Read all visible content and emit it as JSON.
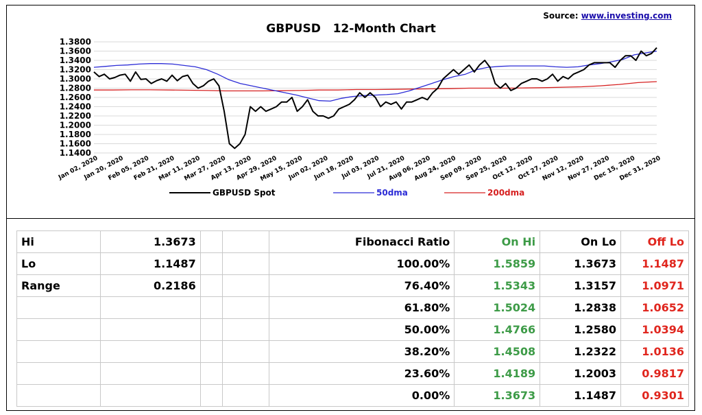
{
  "source": {
    "label": "Source: ",
    "link": "www.investing.com"
  },
  "colors": {
    "spot": "#000000",
    "ma50": "#2b2bd6",
    "ma200": "#d62020",
    "on_hi": "#3d9b47",
    "off_lo": "#e0261e"
  },
  "chart_data": {
    "type": "line",
    "title": "GBPUSD   12-Month Chart",
    "ylim": [
      1.14,
      1.38
    ],
    "y_ticks": [
      "1.1400",
      "1.1600",
      "1.1800",
      "1.2000",
      "1.2200",
      "1.2400",
      "1.2600",
      "1.2800",
      "1.3000",
      "1.3200",
      "1.3400",
      "1.3600",
      "1.3800"
    ],
    "x_ticks": [
      "Jan 02, 2020",
      "Jan 20, 2020",
      "Feb 05, 2020",
      "Feb 21, 2020",
      "Mar 11, 2020",
      "Mar 27, 2020",
      "Apr 13, 2020",
      "Apr 29, 2020",
      "May 15, 2020",
      "Jun 02, 2020",
      "Jun 18, 2020",
      "Jul 03, 2020",
      "Jul 21, 2020",
      "Aug 06, 2020",
      "Aug 24, 2020",
      "Sep 09, 2020",
      "Sep 25, 2020",
      "Oct 12, 2020",
      "Oct 27, 2020",
      "Nov 12, 2020",
      "Nov 27, 2020",
      "Dec 15, 2020",
      "Dec 31, 2020"
    ],
    "grid": true,
    "legend_position": "bottom",
    "series": [
      {
        "name": "GBPUSD Spot",
        "color": "#000000",
        "values": [
          1.315,
          1.305,
          1.31,
          1.3,
          1.303,
          1.308,
          1.31,
          1.295,
          1.315,
          1.299,
          1.3,
          1.29,
          1.296,
          1.3,
          1.295,
          1.308,
          1.296,
          1.305,
          1.308,
          1.29,
          1.28,
          1.285,
          1.295,
          1.3,
          1.285,
          1.23,
          1.16,
          1.15,
          1.16,
          1.18,
          1.24,
          1.23,
          1.24,
          1.23,
          1.235,
          1.24,
          1.25,
          1.25,
          1.26,
          1.23,
          1.24,
          1.255,
          1.23,
          1.22,
          1.22,
          1.215,
          1.22,
          1.235,
          1.24,
          1.245,
          1.255,
          1.27,
          1.26,
          1.27,
          1.26,
          1.24,
          1.25,
          1.245,
          1.25,
          1.235,
          1.25,
          1.25,
          1.255,
          1.26,
          1.255,
          1.27,
          1.28,
          1.3,
          1.31,
          1.32,
          1.31,
          1.32,
          1.33,
          1.315,
          1.33,
          1.34,
          1.325,
          1.29,
          1.28,
          1.29,
          1.275,
          1.28,
          1.29,
          1.295,
          1.3,
          1.3,
          1.295,
          1.3,
          1.31,
          1.295,
          1.305,
          1.3,
          1.31,
          1.315,
          1.32,
          1.33,
          1.335,
          1.335,
          1.335,
          1.335,
          1.325,
          1.34,
          1.35,
          1.35,
          1.34,
          1.36,
          1.35,
          1.355,
          1.3673
        ]
      },
      {
        "name": "50dma",
        "color": "#2b2bd6",
        "values": [
          1.325,
          1.327,
          1.329,
          1.33,
          1.332,
          1.333,
          1.333,
          1.332,
          1.329,
          1.326,
          1.32,
          1.31,
          1.298,
          1.29,
          1.285,
          1.28,
          1.275,
          1.27,
          1.265,
          1.259,
          1.253,
          1.252,
          1.258,
          1.262,
          1.264,
          1.265,
          1.266,
          1.268,
          1.274,
          1.282,
          1.29,
          1.298,
          1.305,
          1.31,
          1.32,
          1.325,
          1.327,
          1.328,
          1.328,
          1.328,
          1.328,
          1.326,
          1.325,
          1.326,
          1.33,
          1.333,
          1.337,
          1.342,
          1.352,
          1.356,
          1.36
        ]
      },
      {
        "name": "200dma",
        "color": "#d62020",
        "values": [
          1.276,
          1.276,
          1.2765,
          1.2765,
          1.276,
          1.2755,
          1.275,
          1.274,
          1.274,
          1.274,
          1.2745,
          1.275,
          1.276,
          1.276,
          1.277,
          1.277,
          1.2775,
          1.278,
          1.2785,
          1.279,
          1.28,
          1.28,
          1.28,
          1.2805,
          1.281,
          1.282,
          1.283,
          1.285,
          1.288,
          1.292,
          1.294
        ]
      }
    ]
  },
  "table": {
    "rows": [
      [
        "Hi",
        "1.3673",
        "",
        "",
        "Fibonacci  Ratio",
        "On Hi",
        "On Lo",
        "Off Lo"
      ],
      [
        "Lo",
        "1.1487",
        "",
        "",
        "100.00%",
        "1.5859",
        "1.3673",
        "1.1487"
      ],
      [
        "Range",
        "0.2186",
        "",
        "",
        "76.40%",
        "1.5343",
        "1.3157",
        "1.0971"
      ],
      [
        "",
        "",
        "",
        "",
        "61.80%",
        "1.5024",
        "1.2838",
        "1.0652"
      ],
      [
        "",
        "",
        "",
        "",
        "50.00%",
        "1.4766",
        "1.2580",
        "1.0394"
      ],
      [
        "",
        "",
        "",
        "",
        "38.20%",
        "1.4508",
        "1.2322",
        "1.0136"
      ],
      [
        "",
        "",
        "",
        "",
        "23.60%",
        "1.4189",
        "1.2003",
        "0.9817"
      ],
      [
        "",
        "",
        "",
        "",
        "0.00%",
        "1.3673",
        "1.1487",
        "0.9301"
      ]
    ]
  }
}
